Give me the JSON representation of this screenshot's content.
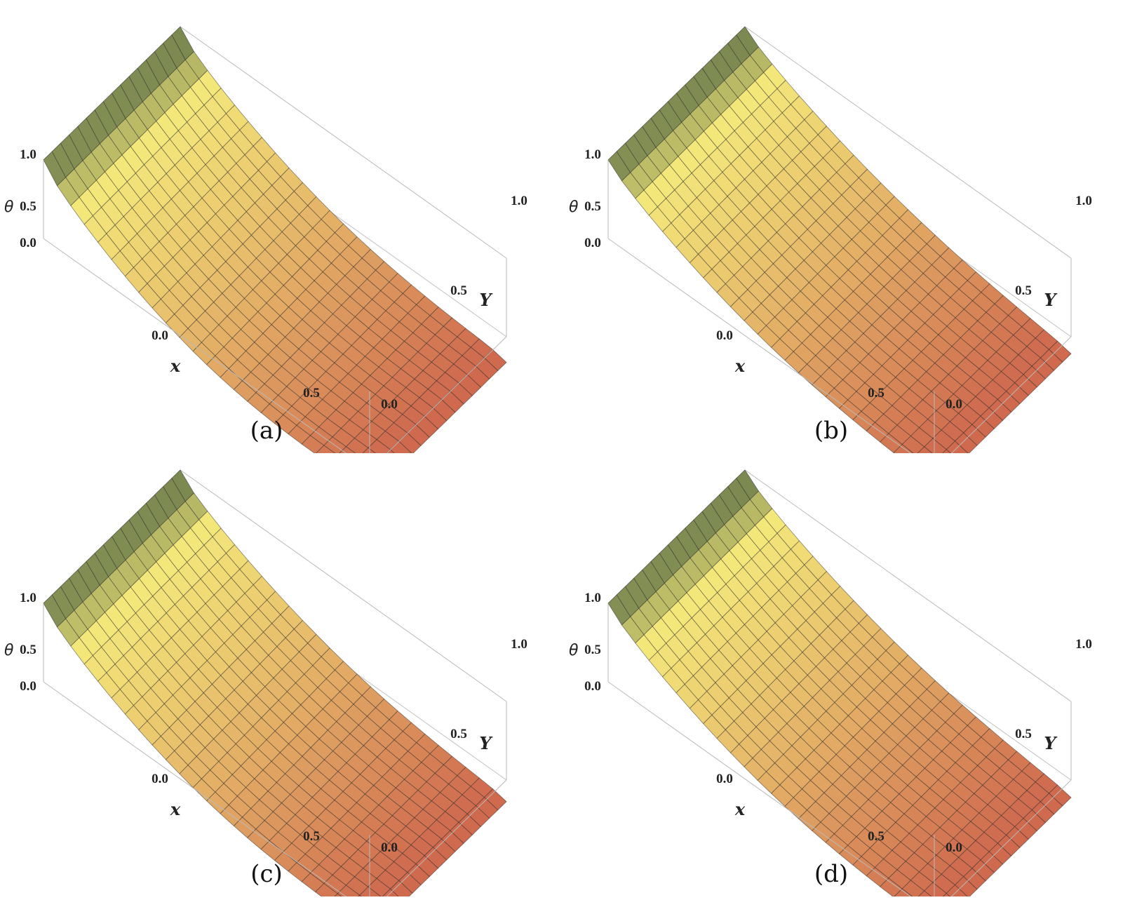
{
  "figure": {
    "panels": [
      {
        "caption": "(a)",
        "zlabel": "θ",
        "xlabel": "x",
        "ylabel": "Y",
        "curvature": 1.25
      },
      {
        "caption": "(b)",
        "zlabel": "θ",
        "xlabel": "x",
        "ylabel": "Y",
        "curvature": 0.75
      },
      {
        "caption": "(c)",
        "zlabel": "θ",
        "xlabel": "x",
        "ylabel": "Y",
        "curvature": 1.05
      },
      {
        "caption": "(d)",
        "zlabel": "θ",
        "xlabel": "x",
        "ylabel": "Y",
        "curvature": 0.85
      }
    ],
    "colors": {
      "high": "#566b44",
      "mid": "#f4e87a",
      "low": "#cf6a4e",
      "box": "#b9b9b9"
    }
  },
  "chart_data": [
    {
      "type": "surface",
      "title": "",
      "caption": "(a)",
      "xlabel": "x",
      "ylabel": "Y",
      "zlabel": "θ",
      "xticks": [
        "0.0",
        "0.5"
      ],
      "yticks": [
        "0.0",
        "0.5",
        "1.0"
      ],
      "zticks": [
        "0.0",
        "0.5",
        "1.0"
      ],
      "xlim": [
        -0.5,
        0.8
      ],
      "ylim": [
        0,
        1
      ],
      "zlim": [
        0,
        1
      ],
      "surface": {
        "x_min": -0.5,
        "x_max": 0.8,
        "z_at_x_min": 1.0,
        "z_at_x_max": 0.12,
        "curvature": 1.25
      }
    },
    {
      "type": "surface",
      "title": "",
      "caption": "(b)",
      "xlabel": "x",
      "ylabel": "Y",
      "zlabel": "θ",
      "xticks": [
        "0.0",
        "0.5"
      ],
      "yticks": [
        "0.0",
        "0.5",
        "1.0"
      ],
      "zticks": [
        "0.0",
        "0.5",
        "1.0"
      ],
      "xlim": [
        -0.5,
        0.8
      ],
      "ylim": [
        0,
        1
      ],
      "zlim": [
        0,
        1
      ],
      "surface": {
        "x_min": -0.5,
        "x_max": 0.8,
        "z_at_x_min": 1.0,
        "z_at_x_max": 0.05,
        "curvature": 0.75
      }
    },
    {
      "type": "surface",
      "title": "",
      "caption": "(c)",
      "xlabel": "x",
      "ylabel": "Y",
      "zlabel": "θ",
      "xticks": [
        "0.0",
        "0.5"
      ],
      "yticks": [
        "0.0",
        "0.5",
        "1.0"
      ],
      "zticks": [
        "0.0",
        "0.5",
        "1.0"
      ],
      "xlim": [
        -0.5,
        0.8
      ],
      "ylim": [
        0,
        1
      ],
      "zlim": [
        0,
        1
      ],
      "surface": {
        "x_min": -0.5,
        "x_max": 0.8,
        "z_at_x_min": 1.0,
        "z_at_x_max": 0.1,
        "curvature": 1.05
      }
    },
    {
      "type": "surface",
      "title": "",
      "caption": "(d)",
      "xlabel": "x",
      "ylabel": "Y",
      "zlabel": "θ",
      "xticks": [
        "0.0",
        "0.5"
      ],
      "yticks": [
        "0.0",
        "0.5",
        "1.0"
      ],
      "zticks": [
        "0.0",
        "0.5",
        "1.0"
      ],
      "xlim": [
        -0.5,
        0.8
      ],
      "ylim": [
        0,
        1
      ],
      "zlim": [
        0,
        1
      ],
      "surface": {
        "x_min": -0.5,
        "x_max": 0.8,
        "z_at_x_min": 1.0,
        "z_at_x_max": 0.08,
        "curvature": 0.85
      }
    }
  ]
}
